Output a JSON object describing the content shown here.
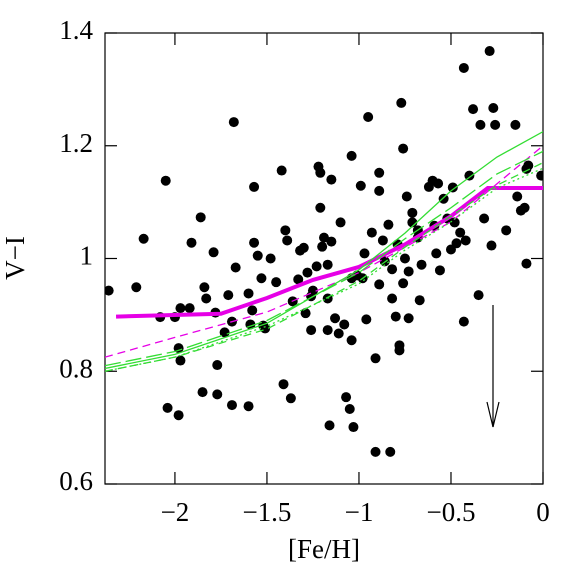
{
  "chart_data": {
    "type": "scatter",
    "xlabel": "[Fe/H]",
    "ylabel": "V−I",
    "xlim": [
      -2.38,
      0
    ],
    "ylim": [
      0.6,
      1.4
    ],
    "xticks": [
      {
        "value": -2,
        "label": "−2"
      },
      {
        "value": -1.5,
        "label": "−1.5"
      },
      {
        "value": -1,
        "label": "−1"
      },
      {
        "value": -0.5,
        "label": "−0.5"
      },
      0
    ],
    "yticks": [
      0.6,
      0.8,
      1,
      1.2,
      1.4
    ],
    "series": [
      {
        "kind": "points",
        "color": "#000000",
        "x": [
          -2.36,
          -2.21,
          -2.17,
          -2.05,
          -2.04,
          -1.98,
          -2.08,
          -2.0,
          -1.97,
          -1.98,
          -1.97,
          -1.92,
          -1.91,
          -1.86,
          -1.84,
          -1.83,
          -1.79,
          -1.78,
          -1.85,
          -1.77,
          -1.77,
          -1.73,
          -1.71,
          -1.69,
          -1.69,
          -1.68,
          -1.67,
          -1.6,
          -1.6,
          -1.58,
          -1.59,
          -1.57,
          -1.57,
          -1.55,
          -1.53,
          -1.52,
          -1.51,
          -1.48,
          -1.45,
          -1.41,
          -1.37,
          -1.42,
          -1.4,
          -1.39,
          -1.36,
          -1.33,
          -1.32,
          -1.3,
          -1.29,
          -1.28,
          -1.26,
          -1.26,
          -1.25,
          -1.23,
          -1.22,
          -1.21,
          -1.21,
          -1.2,
          -1.19,
          -1.17,
          -1.17,
          -1.17,
          -1.16,
          -1.15,
          -1.15,
          -1.13,
          -1.11,
          -1.1,
          -1.08,
          -1.07,
          -1.05,
          -1.03,
          -1.04,
          -1.04,
          -1.04,
          -1.01,
          -0.99,
          -0.98,
          -0.97,
          -0.96,
          -0.95,
          -0.93,
          -0.91,
          -0.91,
          -0.89,
          -0.89,
          -0.89,
          -0.87,
          -0.86,
          -0.84,
          -0.83,
          -0.82,
          -0.82,
          -0.8,
          -0.79,
          -0.78,
          -0.78,
          -0.77,
          -0.76,
          -0.76,
          -0.75,
          -0.74,
          -0.73,
          -0.73,
          -0.71,
          -0.71,
          -0.68,
          -0.68,
          -0.67,
          -0.66,
          -0.62,
          -0.6,
          -0.59,
          -0.58,
          -0.57,
          -0.56,
          -0.54,
          -0.52,
          -0.5,
          -0.49,
          -0.48,
          -0.47,
          -0.45,
          -0.43,
          -0.43,
          -0.42,
          -0.4,
          -0.38,
          -0.35,
          -0.34,
          -0.32,
          -0.29,
          -0.28,
          -0.27,
          -0.26,
          -0.2,
          -0.15,
          -0.14,
          -0.12,
          -0.1,
          -0.09,
          -0.08,
          -0.09,
          -0.01
        ],
        "values": [
          0.943,
          0.949,
          1.035,
          1.138,
          0.735,
          0.722,
          0.896,
          0.896,
          0.912,
          0.841,
          0.819,
          0.912,
          1.028,
          1.073,
          0.949,
          0.929,
          1.011,
          0.904,
          0.763,
          0.759,
          0.811,
          0.869,
          0.935,
          0.888,
          0.74,
          1.242,
          0.984,
          0.738,
          0.938,
          0.908,
          0.883,
          1.127,
          1.028,
          1.005,
          0.965,
          0.881,
          0.876,
          1.0,
          0.958,
          0.777,
          0.752,
          1.156,
          1.05,
          1.032,
          0.924,
          0.963,
          1.014,
          1.019,
          0.903,
          0.975,
          0.873,
          0.933,
          0.943,
          0.986,
          1.163,
          1.152,
          1.09,
          1.021,
          1.037,
          0.989,
          0.929,
          0.873,
          0.704,
          1.14,
          1.03,
          0.894,
          0.867,
          1.064,
          0.883,
          0.754,
          0.733,
          0.701,
          1.182,
          0.855,
          0.965,
          0.97,
          1.129,
          0.965,
          1.009,
          0.892,
          1.251,
          1.046,
          0.823,
          0.657,
          1.152,
          1.12,
          0.954,
          1.032,
          0.995,
          1.06,
          0.657,
          0.981,
          0.929,
          0.897,
          1.025,
          0.846,
          0.837,
          1.276,
          1.195,
          0.956,
          1.0,
          1.11,
          0.894,
          0.977,
          1.064,
          1.081,
          1.037,
          1.05,
          0.926,
          0.989,
          1.127,
          1.138,
          1.058,
          1.009,
          1.133,
          0.979,
          1.106,
          1.071,
          1.016,
          1.126,
          1.064,
          1.027,
          1.046,
          1.338,
          0.888,
          1.032,
          1.147,
          1.265,
          0.935,
          1.237,
          1.071,
          1.368,
          1.023,
          1.267,
          1.237,
          1.05,
          1.237,
          1.11,
          1.085,
          1.09,
          1.159,
          1.165,
          0.991,
          1.147
        ]
      },
      {
        "kind": "line",
        "color": "#e600e6",
        "style": "solid",
        "width": 4,
        "x": [
          -2.32,
          -1.75,
          -1.5,
          -1.25,
          -1,
          -0.75,
          -0.5,
          -0.3,
          -0.25,
          0
        ],
        "values": [
          0.897,
          0.902,
          0.93,
          0.962,
          0.985,
          1.025,
          1.075,
          1.125,
          1.125,
          1.125
        ]
      },
      {
        "kind": "line",
        "color": "#e600e6",
        "style": "dashed",
        "width": 1.3,
        "x": [
          -2.38,
          -2,
          -1.5,
          -1,
          -0.5,
          0
        ],
        "values": [
          0.825,
          0.86,
          0.905,
          0.975,
          1.065,
          1.2
        ]
      },
      {
        "kind": "line",
        "color": "#33dd33",
        "style": "solid",
        "width": 1.3,
        "x": [
          -2.38,
          -2,
          -1.5,
          -1,
          -0.75,
          -0.5,
          -0.25,
          0
        ],
        "values": [
          0.805,
          0.83,
          0.885,
          0.98,
          1.045,
          1.12,
          1.18,
          1.225
        ]
      },
      {
        "kind": "line",
        "color": "#33dd33",
        "style": "longdash",
        "width": 1.3,
        "x": [
          -2.38,
          -2,
          -1.5,
          -1,
          -0.75,
          -0.5,
          -0.25,
          0
        ],
        "values": [
          0.81,
          0.835,
          0.89,
          0.975,
          1.035,
          1.09,
          1.15,
          1.19
        ]
      },
      {
        "kind": "line",
        "color": "#33dd33",
        "style": "dashed",
        "width": 1.3,
        "x": [
          -2.38,
          -2,
          -1.5,
          -1,
          -0.75,
          -0.5,
          -0.25,
          0
        ],
        "values": [
          0.8,
          0.825,
          0.875,
          0.96,
          1.02,
          1.075,
          1.13,
          1.17
        ]
      },
      {
        "kind": "line",
        "color": "#33dd33",
        "style": "dotted",
        "width": 1.3,
        "x": [
          -2.38,
          -2,
          -1.5,
          -1,
          -0.75,
          -0.5,
          -0.25,
          0
        ],
        "values": [
          0.8,
          0.825,
          0.88,
          0.955,
          1.015,
          1.065,
          1.125,
          1.16
        ]
      }
    ]
  }
}
